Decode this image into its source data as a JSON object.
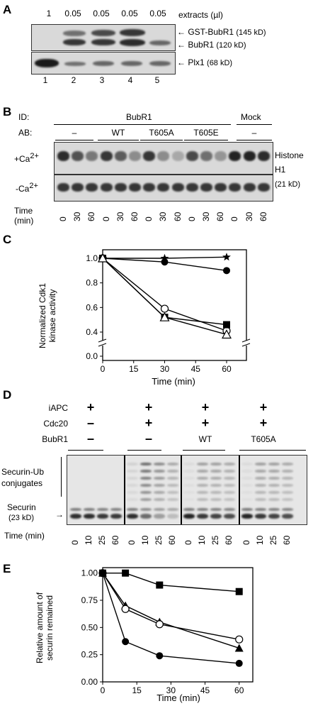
{
  "panelA": {
    "label": "A",
    "volumes": [
      "1",
      "0.05",
      "0.05",
      "0.05",
      "0.05"
    ],
    "volume_unit": "extracts (µl)",
    "bands": [
      {
        "name": "GST-BubR1",
        "size": "(145 kD)"
      },
      {
        "name": "BubR1",
        "size": "(120 kD)"
      },
      {
        "name": "Plx1",
        "size": "(68 kD)"
      }
    ],
    "lanes": [
      "1",
      "2",
      "3",
      "4",
      "5"
    ]
  },
  "panelB": {
    "label": "B",
    "id_label": "ID:",
    "id_groups": [
      "BubR1",
      "Mock"
    ],
    "ab_label": "AB:",
    "ab_groups": [
      "–",
      "WT",
      "T605A",
      "T605E",
      "–"
    ],
    "rows": [
      "+Ca",
      "-Ca"
    ],
    "row_sup": "2+",
    "band_name": "Histone",
    "band_name2": "H1",
    "band_size": "(21 kD)",
    "time_label": "Time",
    "time_unit": "(min)",
    "times": [
      "0",
      "30",
      "60"
    ]
  },
  "panelC": {
    "label": "C",
    "chart_data": {
      "type": "line",
      "xlabel": "Time (min)",
      "ylabel": "Normalized Cdk1 kinase activity",
      "x_ticks": [
        "0",
        "15",
        "30",
        "45",
        "60"
      ],
      "y_ticks": [
        "0.0",
        "0.4",
        "0.6",
        "0.8",
        "1.0"
      ],
      "axis_break": true,
      "series": [
        {
          "marker": "star",
          "x": [
            0,
            30,
            60
          ],
          "y": [
            1.0,
            1.0,
            1.01
          ]
        },
        {
          "marker": "filled-circle",
          "x": [
            0,
            30,
            60
          ],
          "y": [
            1.0,
            0.97,
            0.9
          ]
        },
        {
          "marker": "open-circle",
          "x": [
            0,
            30,
            60
          ],
          "y": [
            1.0,
            0.59,
            0.41
          ]
        },
        {
          "marker": "filled-square",
          "x": [
            0,
            30,
            60
          ],
          "y": [
            1.0,
            0.52,
            0.46
          ]
        },
        {
          "marker": "open-triangle",
          "x": [
            0,
            30,
            60
          ],
          "y": [
            1.0,
            0.52,
            0.38
          ]
        }
      ]
    }
  },
  "panelD": {
    "label": "D",
    "rows": [
      {
        "name": "iAPC",
        "values": [
          "+",
          "+",
          "+",
          "+"
        ]
      },
      {
        "name": "Cdc20",
        "values": [
          "–",
          "+",
          "+",
          "+"
        ]
      },
      {
        "name": "BubR1",
        "values": [
          "–",
          "–",
          "WT",
          "T605A"
        ]
      }
    ],
    "conj_label1": "Securin-Ub",
    "conj_label2": "conjugates",
    "securin_label": "Securin",
    "securin_size": "(23 kD)",
    "time_label": "Time (min)",
    "times": [
      "0",
      "10",
      "25",
      "60"
    ]
  },
  "panelE": {
    "label": "E",
    "chart_data": {
      "type": "line",
      "xlabel": "Time (min)",
      "ylabel": "Relative amount of securin remained",
      "x_ticks": [
        "0",
        "15",
        "30",
        "45",
        "60"
      ],
      "y_ticks": [
        "0.00",
        "0.25",
        "0.50",
        "0.75",
        "1.00"
      ],
      "xlim": [
        0,
        66
      ],
      "ylim": [
        0,
        1.05
      ],
      "series": [
        {
          "marker": "filled-square",
          "x": [
            0,
            10,
            25,
            60
          ],
          "y": [
            1.0,
            1.0,
            0.89,
            0.83
          ]
        },
        {
          "marker": "filled-triangle",
          "x": [
            0,
            10,
            25,
            60
          ],
          "y": [
            1.0,
            0.7,
            0.55,
            0.31
          ]
        },
        {
          "marker": "open-circle",
          "x": [
            0,
            10,
            25,
            60
          ],
          "y": [
            1.0,
            0.67,
            0.53,
            0.39
          ]
        },
        {
          "marker": "filled-circle",
          "x": [
            0,
            10,
            25,
            60
          ],
          "y": [
            1.0,
            0.37,
            0.24,
            0.17
          ]
        }
      ]
    }
  }
}
